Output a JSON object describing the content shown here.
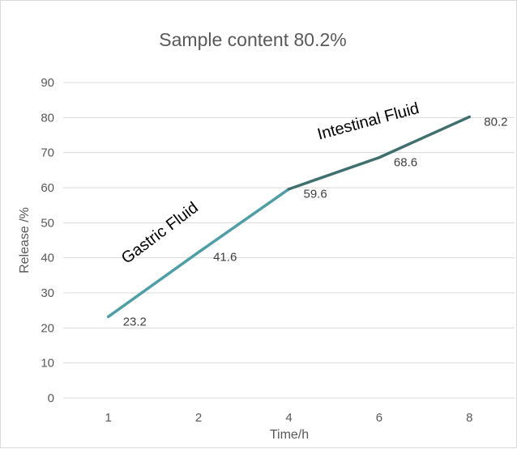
{
  "chart_data": {
    "type": "line",
    "title": "Sample content  80.2%",
    "xlabel": "Time/h",
    "ylabel": "Release /%",
    "categories": [
      "1",
      "2",
      "4",
      "6",
      "8"
    ],
    "values": [
      23.2,
      41.6,
      59.6,
      68.6,
      80.2
    ],
    "data_labels": [
      "23.2",
      "41.6",
      "59.6",
      "68.6",
      "80.2"
    ],
    "ylim": [
      0,
      90
    ],
    "yticks": [
      "0",
      "10",
      "20",
      "30",
      "40",
      "50",
      "60",
      "70",
      "80",
      "90"
    ],
    "grid": true,
    "legend": "none",
    "segments": [
      {
        "from": 0,
        "to": 2,
        "color": "#4f9ea5"
      },
      {
        "from": 2,
        "to": 4,
        "color": "#3f6f6e"
      }
    ],
    "annotations": [
      {
        "text": "Gastric Fluid"
      },
      {
        "text": "Intestinal Fluid"
      }
    ]
  }
}
